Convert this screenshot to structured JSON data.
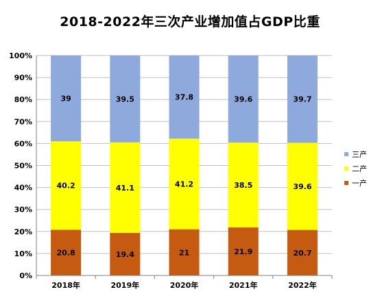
{
  "chart_data": {
    "type": "bar",
    "stacked": true,
    "normalized": true,
    "title": "2018-2022年三次产业增加值占GDP比重",
    "categories": [
      "2018年",
      "2019年",
      "2020年",
      "2021年",
      "2022年"
    ],
    "series": [
      {
        "name": "一产",
        "color": "#C55A11",
        "values": [
          20.8,
          19.4,
          21,
          21.9,
          20.7
        ]
      },
      {
        "name": "二产",
        "color": "#FFFF00",
        "values": [
          40.2,
          41.1,
          41.2,
          38.5,
          39.6
        ]
      },
      {
        "name": "三产",
        "color": "#8EA9DB",
        "values": [
          39,
          39.5,
          37.8,
          39.6,
          39.7
        ]
      }
    ],
    "y_ticks": [
      "0%",
      "10%",
      "20%",
      "30%",
      "40%",
      "50%",
      "60%",
      "70%",
      "80%",
      "90%",
      "100%"
    ],
    "ylim": [
      0,
      100
    ],
    "grid": true,
    "data_labels": true,
    "legend_position": "right",
    "legend_order": [
      "三产",
      "二产",
      "一产"
    ]
  }
}
